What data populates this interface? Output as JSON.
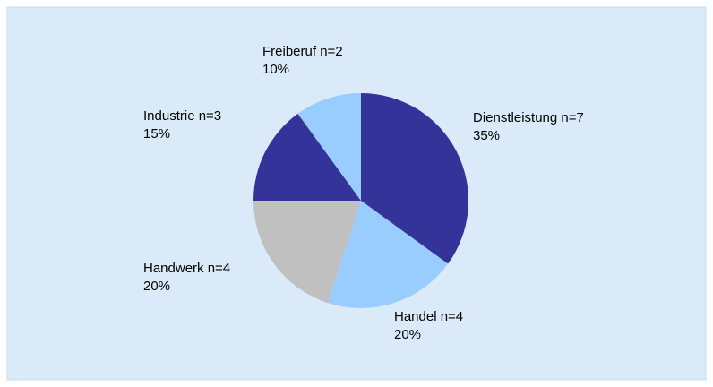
{
  "chart_data": {
    "type": "pie",
    "categories": [
      "Dienstleistung n=7",
      "Handel n=4",
      "Handwerk n=4",
      "Industrie n=3",
      "Freiberuf n=2"
    ],
    "values": [
      35,
      20,
      20,
      15,
      10
    ],
    "value_labels": [
      "35%",
      "20%",
      "20%",
      "15%",
      "10%"
    ],
    "colors": [
      "#333399",
      "#99ccff",
      "#c0c0c0",
      "#333399",
      "#99ccff"
    ]
  }
}
